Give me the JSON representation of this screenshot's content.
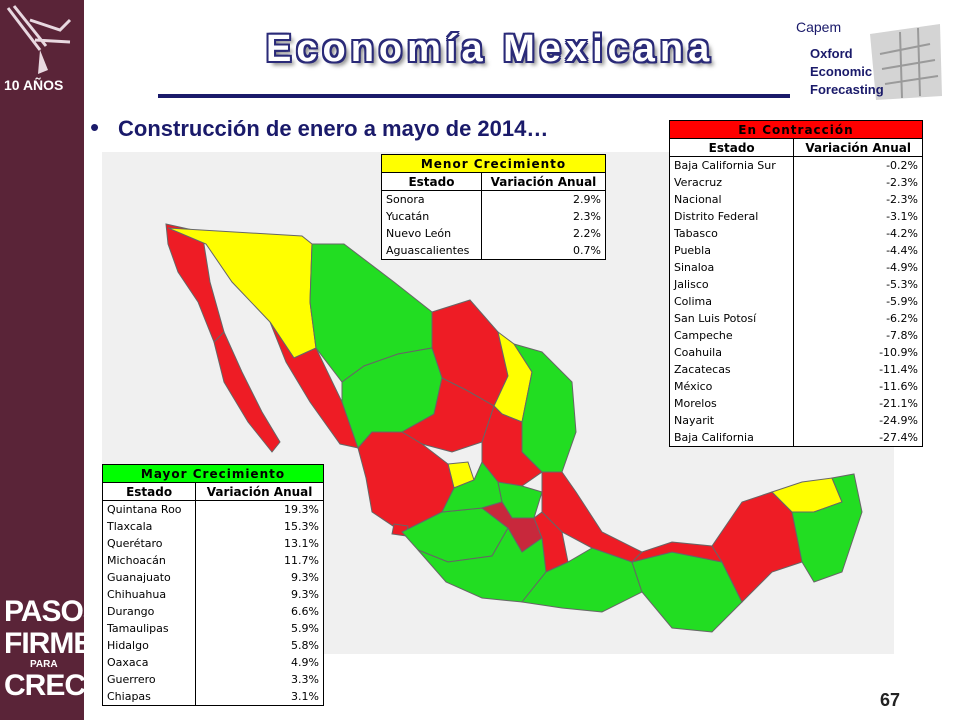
{
  "header": {
    "title": "Economía Mexicana",
    "subtitle": "Construcción de enero a mayo de 2014…",
    "bullet": "•"
  },
  "sidebar": {
    "brand_line1": "PASOS",
    "brand_line2": "FIRMES",
    "brand_line3": "PARA",
    "brand_line4": "CRECER",
    "top_logo_text": "10 AÑOS"
  },
  "logo": {
    "line1": "Capem",
    "line2": "Oxford",
    "line3": "Economic",
    "line4": "Forecasting"
  },
  "colors": {
    "contraccion": "#ff0000",
    "menor": "#ffff00",
    "mayor": "#00ff00",
    "sidebar": "#5a2438",
    "title": "#1a1a6a"
  },
  "tables": {
    "contraccion": {
      "title": "En Contracción",
      "col_estado": "Estado",
      "col_variacion": "Variación Anual",
      "rows": [
        {
          "estado": "Baja California Sur",
          "valor": "-0.2%"
        },
        {
          "estado": "Veracruz",
          "valor": "-2.3%"
        },
        {
          "estado": "Nacional",
          "valor": "-2.3%"
        },
        {
          "estado": "Distrito Federal",
          "valor": "-3.1%"
        },
        {
          "estado": "Tabasco",
          "valor": "-4.2%"
        },
        {
          "estado": "Puebla",
          "valor": "-4.4%"
        },
        {
          "estado": "Sinaloa",
          "valor": "-4.9%"
        },
        {
          "estado": "Jalisco",
          "valor": "-5.3%"
        },
        {
          "estado": "Colima",
          "valor": "-5.9%"
        },
        {
          "estado": "San Luis Potosí",
          "valor": "-6.2%"
        },
        {
          "estado": "Campeche",
          "valor": "-7.8%"
        },
        {
          "estado": "Coahuila",
          "valor": "-10.9%"
        },
        {
          "estado": "Zacatecas",
          "valor": "-11.4%"
        },
        {
          "estado": "México",
          "valor": "-11.6%"
        },
        {
          "estado": "Morelos",
          "valor": "-21.1%"
        },
        {
          "estado": "Nayarit",
          "valor": "-24.9%"
        },
        {
          "estado": "Baja California",
          "valor": "-27.4%"
        }
      ]
    },
    "menor": {
      "title": "Menor Crecimiento",
      "col_estado": "Estado",
      "col_variacion": "Variación Anual",
      "rows": [
        {
          "estado": "Sonora",
          "valor": "2.9%"
        },
        {
          "estado": "Yucatán",
          "valor": "2.3%"
        },
        {
          "estado": "Nuevo León",
          "valor": "2.2%"
        },
        {
          "estado": "Aguascalientes",
          "valor": "0.7%"
        }
      ]
    },
    "mayor": {
      "title": "Mayor Crecimiento",
      "col_estado": "Estado",
      "col_variacion": "Variación Anual",
      "rows": [
        {
          "estado": "Quintana Roo",
          "valor": "19.3%"
        },
        {
          "estado": "Tlaxcala",
          "valor": "15.3%"
        },
        {
          "estado": "Querétaro",
          "valor": "13.1%"
        },
        {
          "estado": "Michoacán",
          "valor": "11.7%"
        },
        {
          "estado": "Guanajuato",
          "valor": "9.3%"
        },
        {
          "estado": "Chihuahua",
          "valor": "9.3%"
        },
        {
          "estado": "Durango",
          "valor": "6.6%"
        },
        {
          "estado": "Tamaulipas",
          "valor": "5.9%"
        },
        {
          "estado": "Hidalgo",
          "valor": "5.8%"
        },
        {
          "estado": "Oaxaca",
          "valor": "4.9%"
        },
        {
          "estado": "Guerrero",
          "valor": "3.3%"
        },
        {
          "estado": "Chiapas",
          "valor": "3.1%"
        }
      ]
    }
  },
  "footer": {
    "page_number": "67"
  }
}
